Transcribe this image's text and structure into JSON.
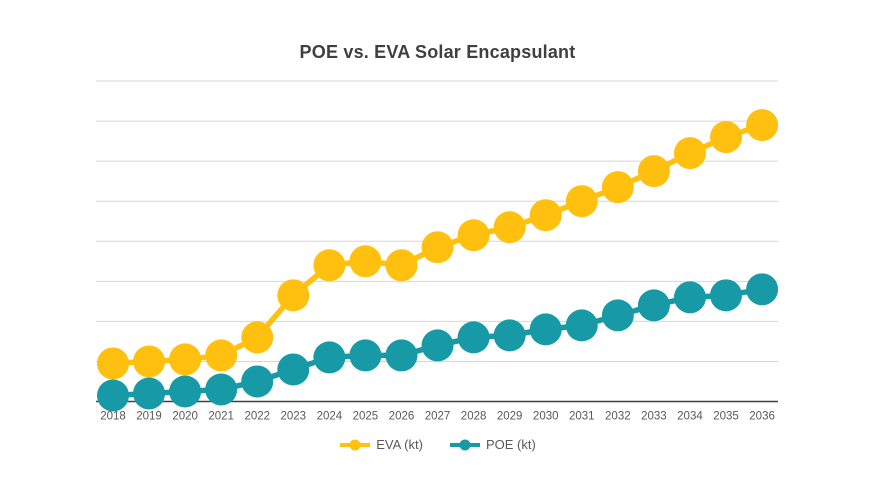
{
  "chart": {
    "title": "POE vs. EVA Solar Encapsulant",
    "style": {
      "title_color": "#3f3f3f",
      "gridline_color": "#d6d6d6",
      "axis_line_color": "#404040",
      "tick_label_color": "#595959",
      "legend_text_color": "#595959",
      "background": "#ffffff"
    }
  },
  "chart_data": {
    "type": "line",
    "title": "POE vs. EVA Solar Encapsulant",
    "x": [
      2018,
      2019,
      2020,
      2021,
      2022,
      2023,
      2024,
      2025,
      2026,
      2027,
      2028,
      2029,
      2030,
      2031,
      2032,
      2033,
      2034,
      2035,
      2036
    ],
    "series": [
      {
        "name": "EVA (kt)",
        "color": "#FFC010",
        "marker": "circle",
        "values": [
          0.95,
          1.0,
          1.05,
          1.15,
          1.6,
          2.65,
          3.4,
          3.5,
          3.4,
          3.85,
          4.15,
          4.35,
          4.65,
          5.0,
          5.35,
          5.75,
          6.2,
          6.6,
          6.9
        ]
      },
      {
        "name": "POE (kt)",
        "color": "#1899A6",
        "marker": "circle",
        "values": [
          0.15,
          0.2,
          0.25,
          0.3,
          0.5,
          0.8,
          1.1,
          1.15,
          1.15,
          1.4,
          1.6,
          1.65,
          1.8,
          1.9,
          2.15,
          2.4,
          2.6,
          2.65,
          2.8
        ]
      }
    ],
    "xlabel": "",
    "ylabel": "",
    "y_axis": {
      "tick_labels_visible": false,
      "note": "y-axis is unlabeled; values estimated in gridline units (1 unit = 1 gridline interval)",
      "ylim": [
        0,
        8
      ],
      "gridline_step": 1
    },
    "grid": "horizontal",
    "legend_position": "bottom-center"
  }
}
